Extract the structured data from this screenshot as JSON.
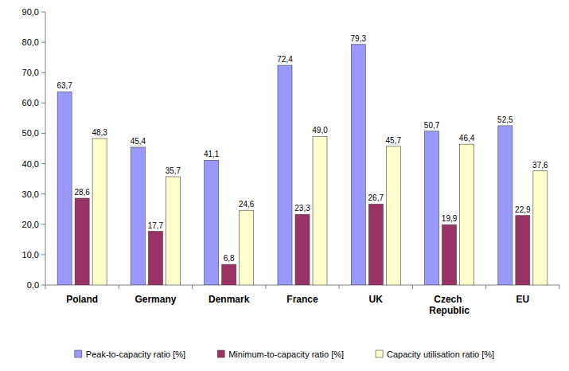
{
  "chart_data": {
    "type": "bar",
    "categories": [
      "Poland",
      "Germany",
      "Denmark",
      "France",
      "UK",
      "Czech Republic",
      "EU"
    ],
    "series": [
      {
        "name": "Peak-to-capacity ratio [%]",
        "color": "#9999ff",
        "values": [
          63.7,
          45.4,
          41.1,
          72.4,
          79.3,
          50.7,
          52.5
        ],
        "value_labels": [
          "63,7",
          "45,4",
          "41,1",
          "72,4",
          "79,3",
          "50,7",
          "52,5"
        ]
      },
      {
        "name": "Minimum-to-capacity ratio [%]",
        "color": "#993366",
        "values": [
          28.6,
          17.7,
          6.8,
          23.3,
          26.7,
          19.9,
          22.9
        ],
        "value_labels": [
          "28,6",
          "17,7",
          "6,8",
          "23,3",
          "26,7",
          "19,9",
          "22,9"
        ]
      },
      {
        "name": "Capacity utilisation ratio [%]",
        "color": "#ffffcc",
        "values": [
          48.3,
          35.7,
          24.6,
          49.0,
          45.7,
          46.4,
          37.6
        ],
        "value_labels": [
          "48,3",
          "35,7",
          "24,6",
          "49,0",
          "45,7",
          "46,4",
          "37,6"
        ]
      }
    ],
    "ylim": [
      0,
      90
    ],
    "yticks": [
      {
        "value": 0,
        "label": "0,0"
      },
      {
        "value": 10,
        "label": "10,0"
      },
      {
        "value": 20,
        "label": "20,0"
      },
      {
        "value": 30,
        "label": "30,0"
      },
      {
        "value": 40,
        "label": "40,0"
      },
      {
        "value": 50,
        "label": "50,0"
      },
      {
        "value": 60,
        "label": "60,0"
      },
      {
        "value": 70,
        "label": "70,0"
      },
      {
        "value": 80,
        "label": "80,0"
      },
      {
        "value": 90,
        "label": "90,0"
      }
    ],
    "grid": false,
    "legend": "bottom",
    "data_labels": true
  }
}
